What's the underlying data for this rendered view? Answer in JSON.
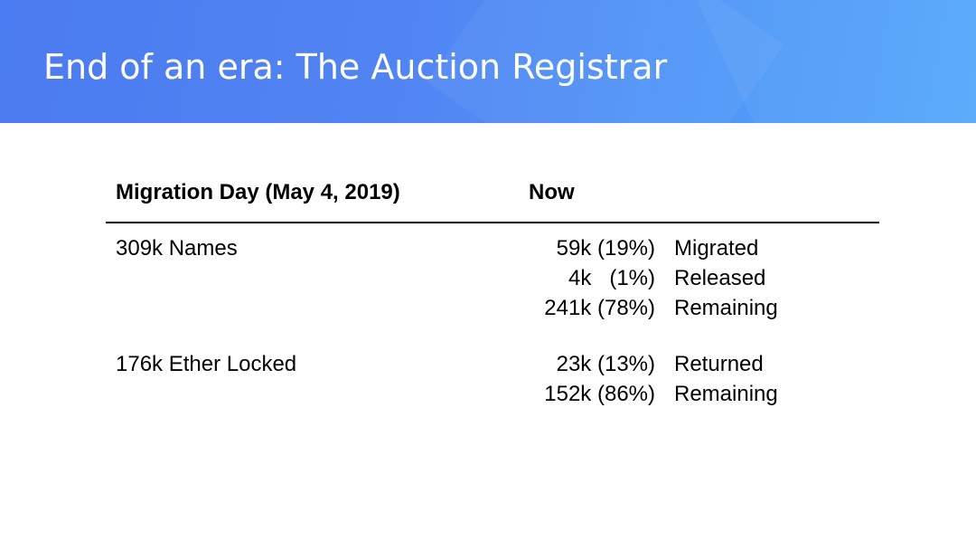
{
  "slide": {
    "title": "End of an era: The Auction Registrar"
  },
  "table": {
    "headers": {
      "migration_day": "Migration Day (May 4, 2019)",
      "now": "Now"
    },
    "groups": [
      {
        "label": "309k Names",
        "rows": [
          {
            "value": "59k (19%)",
            "status": "Migrated"
          },
          {
            "value": "4k   (1%)",
            "status": "Released"
          },
          {
            "value": "241k (78%)",
            "status": "Remaining"
          }
        ]
      },
      {
        "label": "176k Ether Locked",
        "rows": [
          {
            "value": "23k (13%)",
            "status": "Returned"
          },
          {
            "value": "152k (86%)",
            "status": "Remaining"
          }
        ]
      }
    ]
  },
  "colors": {
    "header_gradient_start": "#4b7bf0",
    "header_gradient_end": "#54a8fb",
    "title_text": "#ffffff",
    "body_text": "#000000"
  }
}
